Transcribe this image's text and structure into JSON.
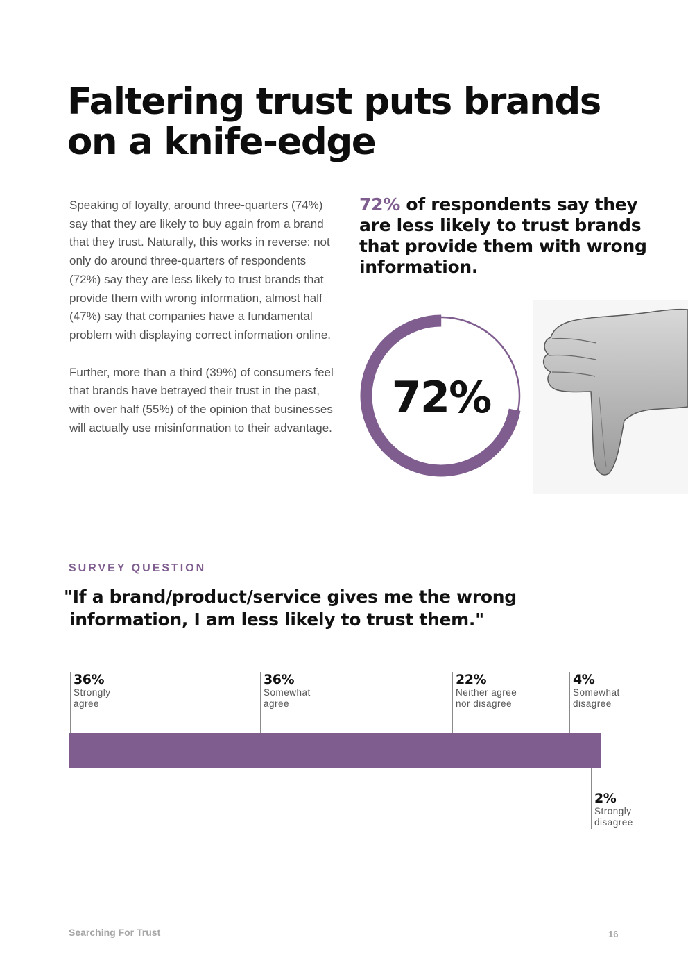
{
  "title": {
    "line1": "Faltering trust puts brands",
    "line2": "on a knife-edge"
  },
  "body": {
    "paragraph1": "Speaking of loyalty, around three-quarters (74%) say that they are likely to buy again from a brand that they trust. Naturally, this works in reverse: not only do around three-quarters of respondents (72%) say they are less likely to trust brands that provide them with wrong information, almost half (47%) say that companies have a fundamental problem with displaying correct information online.",
    "paragraph2": "Further, more than a third (39%) of consumers feel that brands have betrayed their trust in the past, with over half (55%) of the opinion that businesses will actually use misinformation to their advantage."
  },
  "callout": {
    "highlight": "72%",
    "text": " of respondents say they are less likely to trust brands that provide them with wrong information."
  },
  "donut": {
    "label": "72%",
    "fraction": 0.72,
    "color": "#7f5d8f"
  },
  "image": {
    "icon": "thumbs-down-hand"
  },
  "survey": {
    "label": "SURVEY QUESTION",
    "question_line1": "\"If a brand/product/service gives me the wrong",
    "question_line2": "information, I am less likely to trust them.\""
  },
  "chart_data": {
    "type": "bar",
    "orientation": "horizontal-stacked",
    "categories": [
      "Strongly agree",
      "Somewhat agree",
      "Neither agree nor disagree",
      "Somewhat disagree",
      "Strongly disagree"
    ],
    "values": [
      36,
      36,
      22,
      4,
      2
    ],
    "unit": "%",
    "color": "#7f5d8f",
    "segments": [
      {
        "pct": "36%",
        "label": "Strongly\nagree"
      },
      {
        "pct": "36%",
        "label": "Somewhat\nagree"
      },
      {
        "pct": "22%",
        "label": "Neither agree\nnor disagree"
      },
      {
        "pct": "4%",
        "label": "Somewhat\ndisagree"
      },
      {
        "pct": "2%",
        "label": "Strongly\ndisagree"
      }
    ]
  },
  "footer": {
    "left": "Searching For Trust",
    "page": "16"
  }
}
